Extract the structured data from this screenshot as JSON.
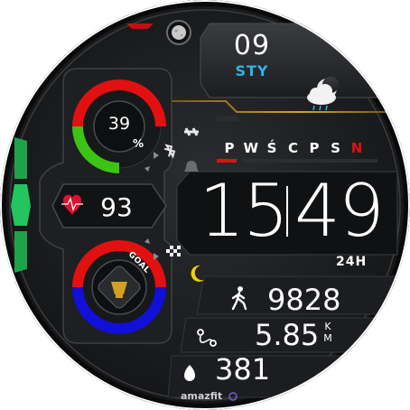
{
  "colors": {
    "accent_blue": "#2fb4e9",
    "battery_red": "#e21010",
    "battery_green": "#3cc414",
    "goal_blue": "#1010d8",
    "moon_yellow": "#f0d000",
    "active_day_red": "#e21010",
    "heart_red": "#e01030",
    "status_green": "#1fa34a"
  },
  "date": {
    "day": "09",
    "month": "STY"
  },
  "weather": {
    "icon": "partly-cloudy-night-rain-icon"
  },
  "battery": {
    "value": "39",
    "unit": "%",
    "level": 0.39
  },
  "heart_rate": {
    "value": "93",
    "icon": "heart-pulse-icon"
  },
  "goal": {
    "label": "GOAL",
    "progress": 0.6
  },
  "weekdays": [
    {
      "label": "P",
      "active": false
    },
    {
      "label": "W",
      "active": false
    },
    {
      "label": "Ś",
      "active": false
    },
    {
      "label": "C",
      "active": false
    },
    {
      "label": "P",
      "active": false
    },
    {
      "label": "S",
      "active": false
    },
    {
      "label": "N",
      "active": true
    }
  ],
  "time": {
    "hours": "15",
    "minutes": "49",
    "format": "24H"
  },
  "activity": {
    "steps": "9828",
    "distance": "5.85",
    "distance_unit_top": "K",
    "distance_unit_bottom": "M",
    "calories": "381"
  },
  "status_icons": [
    "walking-icon",
    "checkered-flag-icon",
    "alarm-bell-icon",
    "moon-icon",
    "workout-icon",
    "bluetooth-icon"
  ],
  "brand": "amazfit"
}
